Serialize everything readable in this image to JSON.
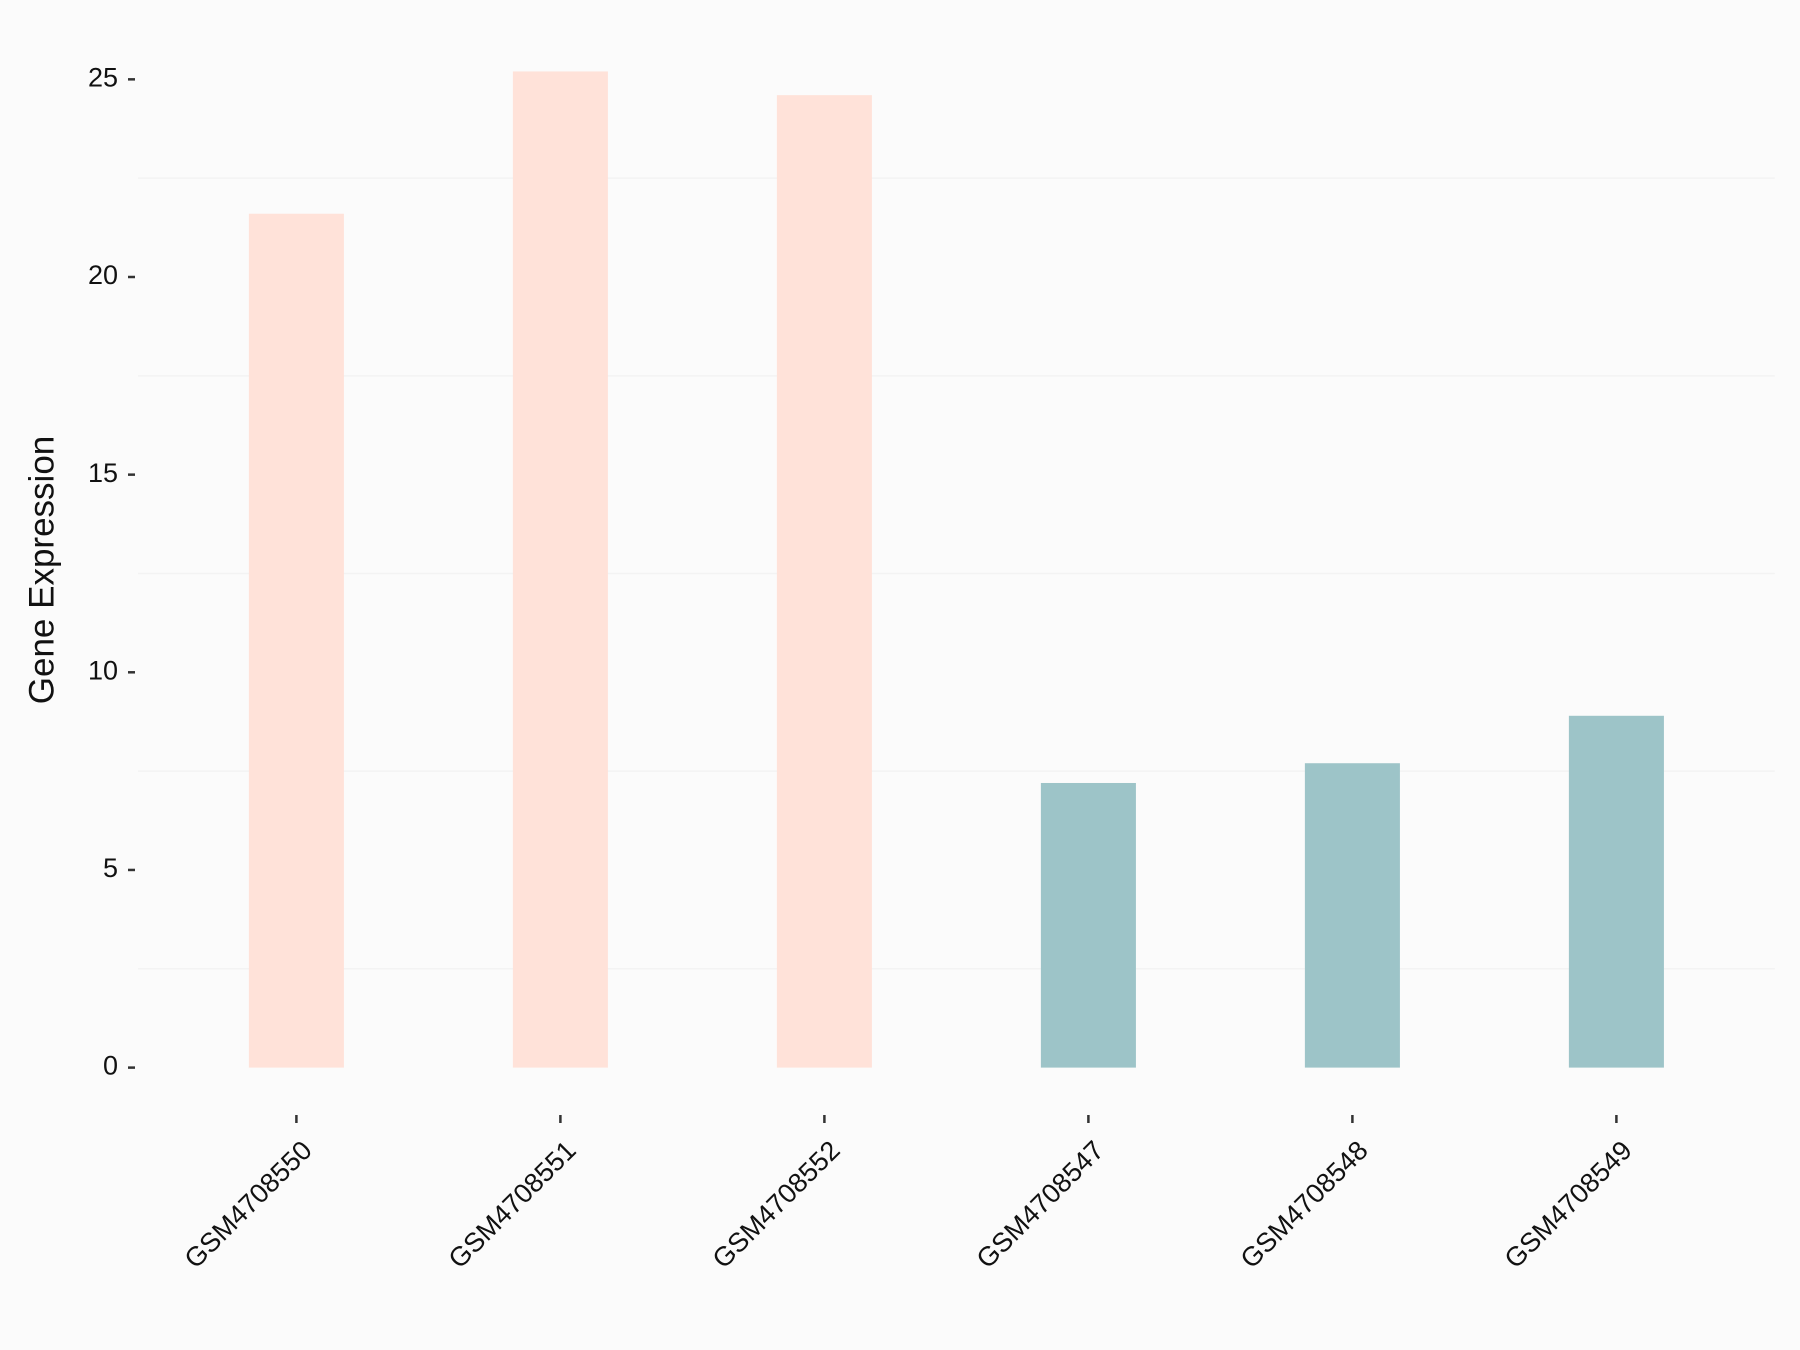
{
  "chart_data": {
    "type": "bar",
    "y_label": "Gene Expression",
    "categories": [
      "GSM4708550",
      "GSM4708551",
      "GSM4708552",
      "GSM4708547",
      "GSM4708548",
      "GSM4708549"
    ],
    "values": [
      21.6,
      25.2,
      24.6,
      7.2,
      7.7,
      8.9
    ],
    "colors": [
      "#ffe2d9",
      "#ffe2d9",
      "#ffe2d9",
      "#9dc4c8",
      "#9dc4c8",
      "#9dc4c8"
    ],
    "ylim": [
      -1.3,
      26.4
    ],
    "yticks": [
      0,
      5,
      10,
      15,
      20,
      25
    ],
    "minor_yticks": [
      2.5,
      7.5,
      12.5,
      17.5,
      22.5
    ],
    "grid": true
  }
}
